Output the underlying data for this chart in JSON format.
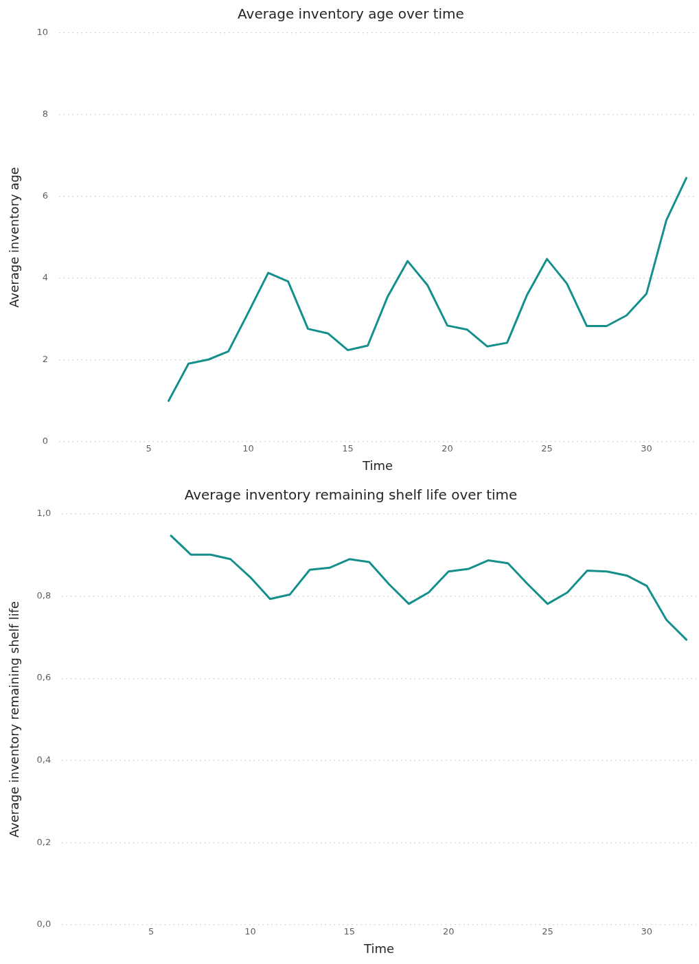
{
  "chart_data": [
    {
      "type": "line",
      "title": "Average inventory age over time",
      "xlabel": "Time",
      "ylabel": "Average inventory age",
      "x": [
        6,
        7,
        8,
        9,
        10,
        11,
        12,
        13,
        14,
        15,
        16,
        17,
        18,
        19,
        20,
        21,
        22,
        23,
        24,
        25,
        26,
        27,
        28,
        29,
        30,
        31,
        32
      ],
      "series": [
        {
          "color": "#148f8c",
          "values": [
            1.0,
            1.91,
            2.01,
            2.21,
            3.16,
            4.13,
            3.92,
            2.76,
            2.65,
            2.24,
            2.35,
            3.55,
            4.42,
            3.83,
            2.84,
            2.74,
            2.33,
            2.42,
            3.59,
            4.47,
            3.87,
            2.83,
            2.83,
            3.09,
            3.62,
            5.42,
            6.45
          ]
        }
      ],
      "xlim": [
        0.5,
        32.5
      ],
      "xticks": [
        5,
        10,
        15,
        20,
        25,
        30
      ],
      "ylim": [
        0,
        10
      ],
      "yticks": [
        0,
        2,
        4,
        6,
        8,
        10
      ],
      "grid": "y",
      "legend": false,
      "marker": "none",
      "line_style": "solid"
    },
    {
      "type": "line",
      "title": "Average inventory remaining shelf life over time",
      "xlabel": "Time",
      "ylabel": "Average inventory remaining shelf life",
      "x": [
        6,
        7,
        8,
        9,
        10,
        11,
        12,
        13,
        14,
        15,
        16,
        17,
        18,
        19,
        20,
        21,
        22,
        23,
        24,
        25,
        26,
        27,
        28,
        29,
        30,
        31,
        32
      ],
      "series": [
        {
          "color": "#148f8c",
          "values": [
            0.947,
            0.901,
            0.901,
            0.89,
            0.846,
            0.793,
            0.804,
            0.864,
            0.869,
            0.89,
            0.883,
            0.829,
            0.781,
            0.809,
            0.86,
            0.866,
            0.887,
            0.88,
            0.829,
            0.781,
            0.809,
            0.862,
            0.86,
            0.85,
            0.825,
            0.742,
            0.694
          ]
        }
      ],
      "xlim": [
        0.5,
        32.5
      ],
      "xticks": [
        5,
        10,
        15,
        20,
        25,
        30
      ],
      "ylim": [
        0,
        1
      ],
      "yticks": [
        {
          "value": 0,
          "label": "0,0"
        },
        {
          "value": 0.2,
          "label": "0,2"
        },
        {
          "value": 0.4,
          "label": "0,4"
        },
        {
          "value": 0.6,
          "label": "0,6"
        },
        {
          "value": 0.8,
          "label": "0,8"
        },
        {
          "value": 1,
          "label": "1,0"
        }
      ],
      "grid": "y",
      "legend": false,
      "marker": "none",
      "line_style": "solid"
    }
  ]
}
